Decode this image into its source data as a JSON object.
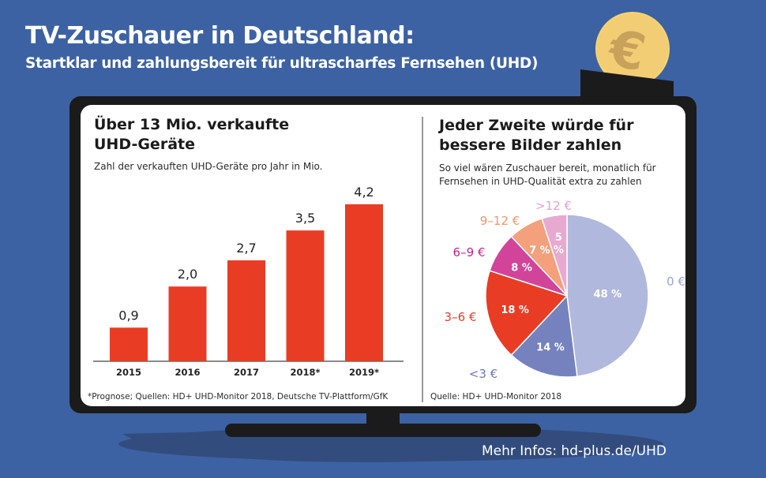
{
  "header": {
    "title": "TV-Zuschauer in Deutschland:",
    "subtitle": "Startklar und zahlungsbereit für ultrascharfes Fernsehen (UHD)"
  },
  "decoration": {
    "coin_icon": "euro-coin-icon",
    "coin_symbol": "€",
    "coin_color": "#f2cd74",
    "tv_color": "#1c1b1b",
    "background_color": "#3c62a3"
  },
  "left_panel": {
    "heading_line1": "Über 13 Mio. verkaufte",
    "heading_line2": "UHD-Geräte",
    "description": "Zahl der verkauften UHD-Geräte pro Jahr in Mio.",
    "footnote": "*Prognose; Quellen: HD+ UHD-Monitor 2018, Deutsche TV-Plattform/GfK"
  },
  "right_panel": {
    "heading_line1": "Jeder Zweite würde für",
    "heading_line2": "bessere Bilder zahlen",
    "description_line1": "So viel wären Zuschauer bereit, monatlich für",
    "description_line2": "Fernsehen in UHD-Qualität extra zu zahlen",
    "source": "Quelle: HD+ UHD-Monitor 2018"
  },
  "footer": {
    "link_text": "Mehr Infos: hd-plus.de/UHD"
  },
  "chart_data": [
    {
      "type": "bar",
      "title": "Über 13 Mio. verkaufte UHD-Geräte",
      "subtitle": "Zahl der verkauften UHD-Geräte pro Jahr in Mio.",
      "xlabel": "",
      "ylabel": "Mio.",
      "categories": [
        "2015",
        "2016",
        "2017",
        "2018*",
        "2019*"
      ],
      "values": [
        0.9,
        2.0,
        2.7,
        3.5,
        4.2
      ],
      "value_labels": [
        "0,9",
        "2,0",
        "2,7",
        "3,5",
        "4,2"
      ],
      "ylim": [
        0,
        4.2
      ],
      "grid": false,
      "bar_color": "#e83c24"
    },
    {
      "type": "pie",
      "title": "Jeder Zweite würde für bessere Bilder zahlen",
      "subtitle": "So viel wären Zuschauer bereit, monatlich für Fernsehen in UHD-Qualität extra zu zahlen",
      "slices": [
        {
          "label": "0 €",
          "value": 48,
          "value_label": "48 %",
          "color": "#b1b8dd",
          "label_color": "#9aa3d3"
        },
        {
          "label": "<3 €",
          "value": 14,
          "value_label": "14 %",
          "color": "#7582be",
          "label_color": "#6b78b8"
        },
        {
          "label": "3–6 €",
          "value": 18,
          "value_label": "18 %",
          "color": "#e83c24",
          "label_color": "#e83c24"
        },
        {
          "label": "6–9 €",
          "value": 8,
          "value_label": "8 %",
          "color": "#d2449a",
          "label_color": "#c8238a"
        },
        {
          "label": "9–12 €",
          "value": 7,
          "value_label": "7 %",
          "color": "#f4a07c",
          "label_color": "#f0956a"
        },
        {
          "label": ">12 €",
          "value": 5,
          "value_label": "5\n%",
          "color": "#e8a9d0",
          "label_color": "#e6a0cc"
        }
      ]
    }
  ]
}
